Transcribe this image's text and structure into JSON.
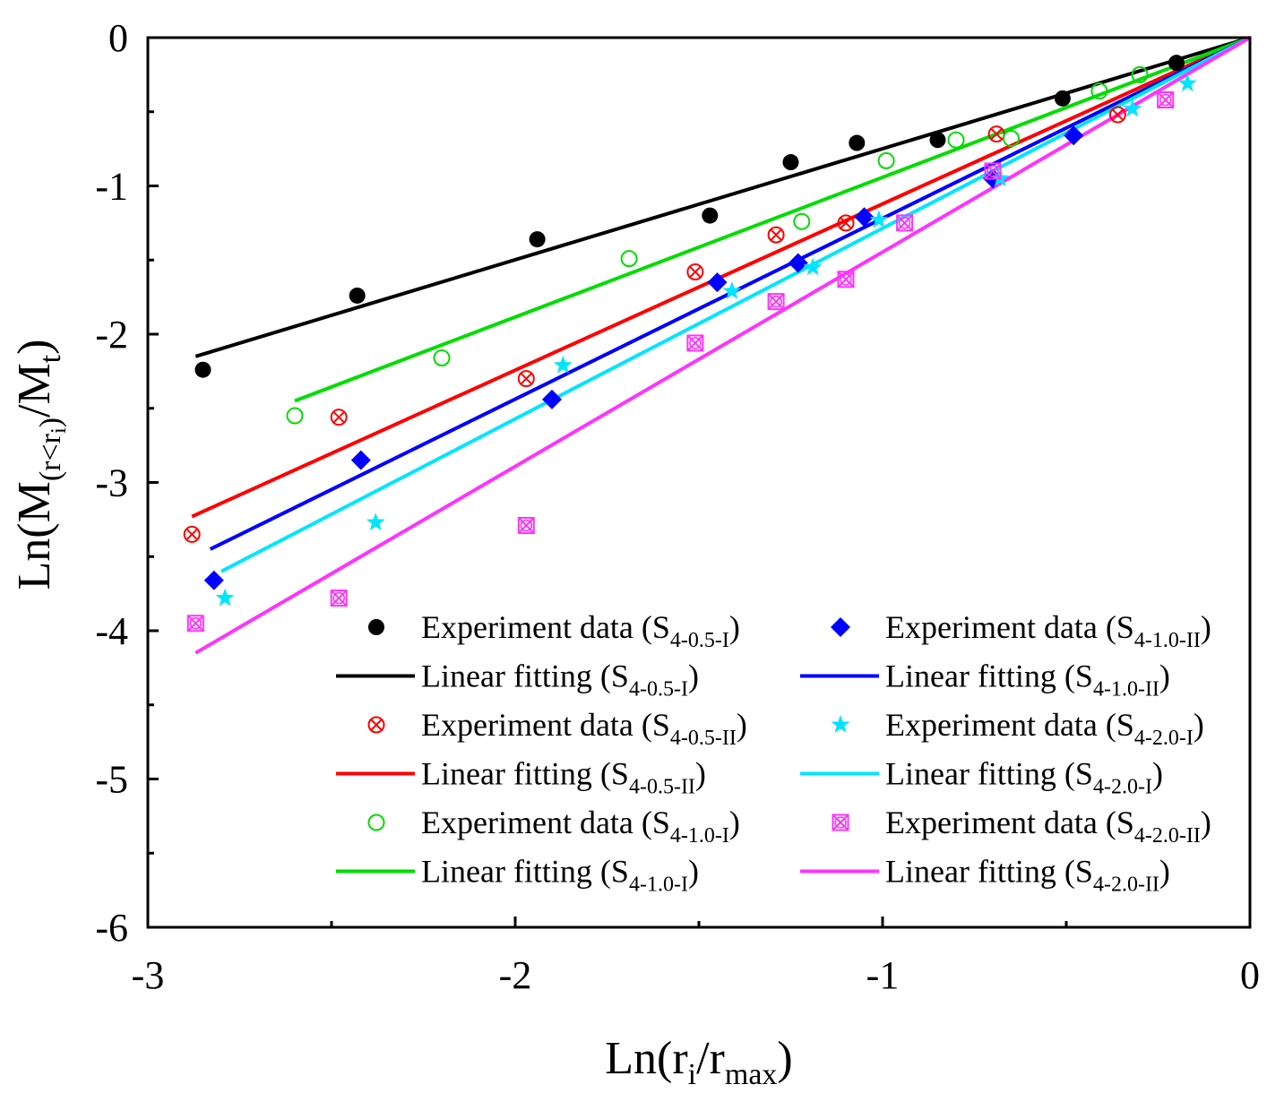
{
  "chart_data": {
    "type": "scatter",
    "title": "",
    "xlabel": {
      "main": "Ln(r",
      "sub1": "i",
      "mid": "/r",
      "sub2": "max",
      "end": ")"
    },
    "ylabel": {
      "main": "Ln(M",
      "sub": "(r<r",
      "subsub": "i",
      "subclose": ")",
      "mid": "/M",
      "sub2": "t",
      "end": ")"
    },
    "xlim": [
      -3,
      0
    ],
    "ylim": [
      -6,
      0
    ],
    "xticks": [
      {
        "value": -3,
        "label": "-3"
      },
      {
        "value": -2,
        "label": "-2"
      },
      {
        "value": -1,
        "label": "-1"
      },
      {
        "value": 0,
        "label": "0"
      }
    ],
    "yticks": [
      {
        "value": 0,
        "label": "0"
      },
      {
        "value": -1,
        "label": "-1"
      },
      {
        "value": -2,
        "label": "-2"
      },
      {
        "value": -3,
        "label": "-3"
      },
      {
        "value": -4,
        "label": "-4"
      },
      {
        "value": -5,
        "label": "-5"
      },
      {
        "value": -6,
        "label": "-6"
      }
    ],
    "series": [
      {
        "id": "s1",
        "color": "#000000",
        "marker": "filled-circle",
        "point_label": "Experiment data (",
        "fit_label": "Linear fitting (",
        "sample_sub": "4-0.5-I",
        "points": [
          [
            -2.85,
            -2.24
          ],
          [
            -2.43,
            -1.74
          ],
          [
            -1.94,
            -1.36
          ],
          [
            -1.47,
            -1.2
          ],
          [
            -1.25,
            -0.84
          ],
          [
            -1.07,
            -0.71
          ],
          [
            -0.85,
            -0.69
          ],
          [
            -0.51,
            -0.41
          ],
          [
            -0.2,
            -0.17
          ]
        ],
        "fit": [
          [
            -2.87,
            -2.15
          ],
          [
            0,
            0
          ]
        ]
      },
      {
        "id": "s2",
        "color": "#ff0000",
        "marker": "crossed-circle",
        "point_label": "Experiment data (",
        "fit_label": "Linear fitting  (",
        "sample_sub": "4-0.5-II",
        "points": [
          [
            -2.88,
            -3.35
          ],
          [
            -2.48,
            -2.56
          ],
          [
            -1.97,
            -2.3
          ],
          [
            -1.51,
            -1.58
          ],
          [
            -1.29,
            -1.33
          ],
          [
            -1.1,
            -1.25
          ],
          [
            -0.69,
            -0.65
          ],
          [
            -0.36,
            -0.52
          ]
        ],
        "fit": [
          [
            -2.88,
            -3.23
          ],
          [
            0,
            0
          ]
        ]
      },
      {
        "id": "s3",
        "color": "#00dd00",
        "marker": "open-circle",
        "point_label": "Experiment data (",
        "fit_label": "Linear fitting (",
        "sample_sub": "4-1.0-I",
        "points": [
          [
            -2.6,
            -2.55
          ],
          [
            -2.2,
            -2.16
          ],
          [
            -1.69,
            -1.49
          ],
          [
            -1.22,
            -1.24
          ],
          [
            -0.99,
            -0.83
          ],
          [
            -0.8,
            -0.69
          ],
          [
            -0.65,
            -0.68
          ],
          [
            -0.41,
            -0.36
          ],
          [
            -0.3,
            -0.25
          ]
        ],
        "fit": [
          [
            -2.6,
            -2.45
          ],
          [
            0,
            0
          ]
        ]
      },
      {
        "id": "s4",
        "color": "#0000ff",
        "marker": "filled-diamond",
        "point_label": "Experiment data (",
        "fit_label": "Linear fitting (",
        "sample_sub": "4-1.0-II",
        "points": [
          [
            -2.82,
            -3.66
          ],
          [
            -2.42,
            -2.85
          ],
          [
            -1.9,
            -2.44
          ],
          [
            -1.45,
            -1.65
          ],
          [
            -1.23,
            -1.52
          ],
          [
            -1.05,
            -1.21
          ],
          [
            -0.7,
            -0.95
          ],
          [
            -0.48,
            -0.66
          ]
        ],
        "fit": [
          [
            -2.83,
            -3.45
          ],
          [
            0,
            0
          ]
        ]
      },
      {
        "id": "s5",
        "color": "#00e5ff",
        "marker": "star",
        "point_label": "Experiment data (",
        "fit_label": "Linear fitting (",
        "sample_sub": "4-2.0-I",
        "points": [
          [
            -2.79,
            -3.78
          ],
          [
            -2.38,
            -3.27
          ],
          [
            -1.87,
            -2.21
          ],
          [
            -1.41,
            -1.71
          ],
          [
            -1.19,
            -1.55
          ],
          [
            -1.01,
            -1.23
          ],
          [
            -0.68,
            -0.95
          ],
          [
            -0.32,
            -0.48
          ],
          [
            -0.17,
            -0.31
          ]
        ],
        "fit": [
          [
            -2.8,
            -3.6
          ],
          [
            0,
            0
          ]
        ]
      },
      {
        "id": "s6",
        "color": "#ff33ff",
        "marker": "crossed-square",
        "point_label": "Experiment data (",
        "fit_label": "Linear fitting (",
        "sample_sub": "4-2.0-II",
        "points": [
          [
            -2.87,
            -3.95
          ],
          [
            -2.48,
            -3.78
          ],
          [
            -1.97,
            -3.29
          ],
          [
            -1.51,
            -2.06
          ],
          [
            -1.29,
            -1.78
          ],
          [
            -1.1,
            -1.63
          ],
          [
            -0.94,
            -1.25
          ],
          [
            -0.7,
            -0.9
          ],
          [
            -0.23,
            -0.42
          ]
        ],
        "fit": [
          [
            -2.87,
            -4.15
          ],
          [
            0,
            0
          ]
        ]
      }
    ],
    "legend": {
      "position": "bottom-right",
      "order": [
        [
          "s1",
          "points"
        ],
        [
          "s1",
          "fit"
        ],
        [
          "s2",
          "points"
        ],
        [
          "s2",
          "fit"
        ],
        [
          "s3",
          "points"
        ],
        [
          "s3",
          "fit"
        ],
        [
          "s4",
          "points"
        ],
        [
          "s4",
          "fit"
        ],
        [
          "s5",
          "points"
        ],
        [
          "s5",
          "fit"
        ],
        [
          "s6",
          "points"
        ],
        [
          "s6",
          "fit"
        ]
      ]
    }
  }
}
